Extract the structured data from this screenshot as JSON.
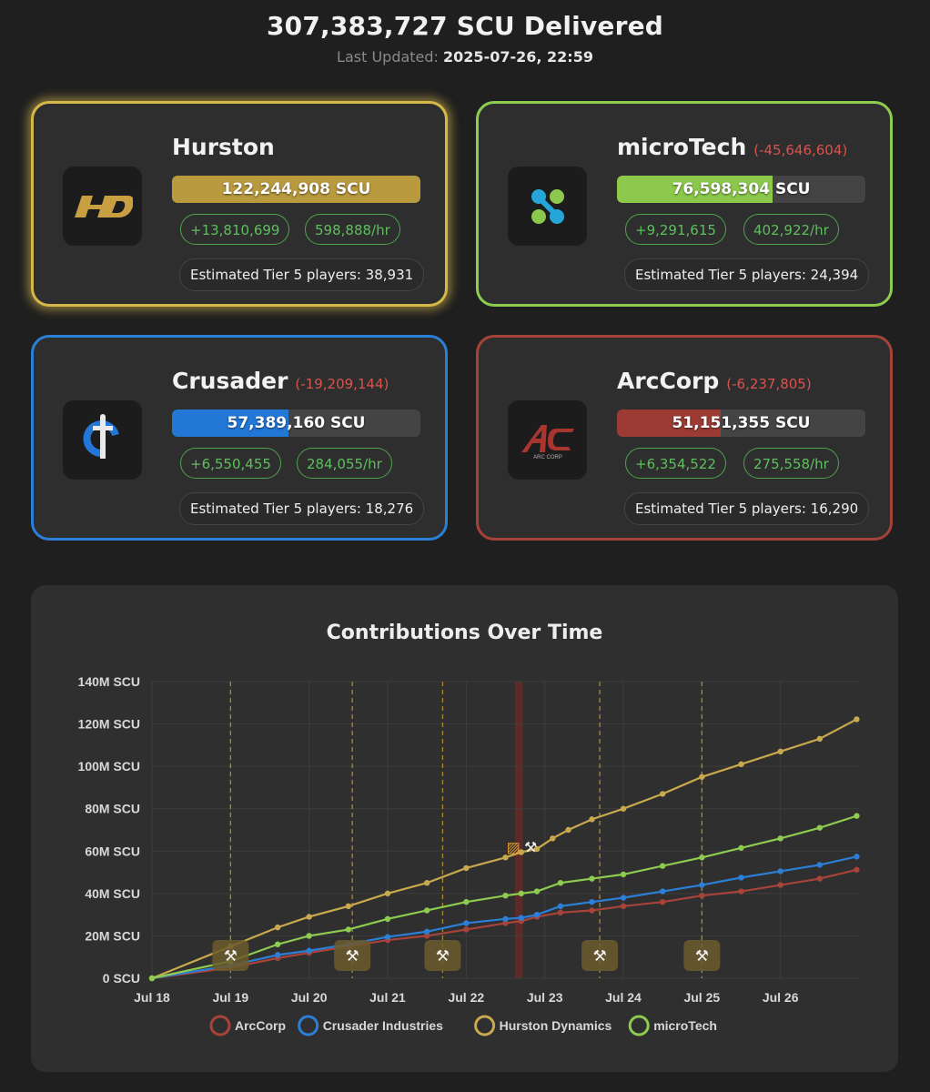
{
  "header": {
    "title": "307,383,727 SCU Delivered",
    "updated_label": "Last Updated:",
    "updated_value": "2025-07-26, 22:59"
  },
  "factions": [
    {
      "name": "Hurston",
      "delta": "",
      "scu": "122,244,908 SCU",
      "fill": 1.0,
      "gain": "+13,810,699",
      "rate": "598,888/hr",
      "tier": "Estimated Tier 5 players: 38,931",
      "color": "#b99a3e",
      "icon": "hurston-dynamics-logo"
    },
    {
      "name": "microTech",
      "delta": "(-45,646,604)",
      "scu": "76,598,304 SCU",
      "fill": 0.626,
      "gain": "+9,291,615",
      "rate": "402,922/hr",
      "tier": "Estimated Tier 5 players: 24,394",
      "color": "#8cc84b",
      "icon": "microtech-logo"
    },
    {
      "name": "Crusader",
      "delta": "(-19,209,144)",
      "scu": "57,389,160 SCU",
      "fill": 0.469,
      "gain": "+6,550,455",
      "rate": "284,055/hr",
      "tier": "Estimated Tier 5 players: 18,276",
      "color": "#2377d6",
      "icon": "crusader-logo"
    },
    {
      "name": "ArcCorp",
      "delta": "(-6,237,805)",
      "scu": "51,151,355 SCU",
      "fill": 0.418,
      "gain": "+6,354,522",
      "rate": "275,558/hr",
      "tier": "Estimated Tier 5 players: 16,290",
      "color": "#9b3b34",
      "icon": "arccorp-logo"
    }
  ],
  "chart_data": {
    "type": "line",
    "title": "Contributions Over Time",
    "xlabel": "",
    "ylabel": "",
    "x_ticks": [
      "Jul 18",
      "Jul 19",
      "Jul 20",
      "Jul 21",
      "Jul 22",
      "Jul 23",
      "Jul 24",
      "Jul 25",
      "Jul 26"
    ],
    "y_ticks": [
      "0 SCU",
      "20M SCU",
      "40M SCU",
      "60M SCU",
      "80M SCU",
      "100M SCU",
      "120M SCU",
      "140M SCU"
    ],
    "ylim": [
      0,
      140
    ],
    "xlim": [
      0,
      9
    ],
    "x_unit": "days since Jul 18",
    "grid": true,
    "legend_position": "bottom",
    "series": [
      {
        "name": "ArcCorp",
        "color": "#a8433a",
        "points": [
          [
            0,
            0
          ],
          [
            1,
            5
          ],
          [
            1.6,
            9.5
          ],
          [
            2,
            12
          ],
          [
            2.5,
            15
          ],
          [
            3,
            18
          ],
          [
            3.5,
            20
          ],
          [
            4,
            23
          ],
          [
            4.5,
            26
          ],
          [
            4.7,
            27
          ],
          [
            4.9,
            29
          ],
          [
            5.2,
            31
          ],
          [
            5.6,
            32
          ],
          [
            6,
            34
          ],
          [
            6.5,
            36
          ],
          [
            7,
            39
          ],
          [
            7.5,
            41
          ],
          [
            8,
            44
          ],
          [
            8.5,
            47
          ],
          [
            8.97,
            51.2
          ]
        ]
      },
      {
        "name": "Crusader Industries",
        "color": "#2b7fd7",
        "points": [
          [
            0,
            0
          ],
          [
            1,
            6
          ],
          [
            1.6,
            11
          ],
          [
            2,
            13
          ],
          [
            2.5,
            16
          ],
          [
            3,
            19.5
          ],
          [
            3.5,
            22
          ],
          [
            4,
            26
          ],
          [
            4.5,
            28
          ],
          [
            4.7,
            28.5
          ],
          [
            4.9,
            30
          ],
          [
            5.2,
            34
          ],
          [
            5.6,
            36
          ],
          [
            6,
            38
          ],
          [
            6.5,
            41
          ],
          [
            7,
            44
          ],
          [
            7.5,
            47.5
          ],
          [
            8,
            50.5
          ],
          [
            8.5,
            53.5
          ],
          [
            8.97,
            57.4
          ]
        ]
      },
      {
        "name": "Hurston Dynamics",
        "color": "#c9a94d",
        "points": [
          [
            0,
            0
          ],
          [
            1,
            15
          ],
          [
            1.6,
            24
          ],
          [
            2,
            29
          ],
          [
            2.5,
            34
          ],
          [
            3,
            40
          ],
          [
            3.5,
            45
          ],
          [
            4,
            52
          ],
          [
            4.5,
            57
          ],
          [
            4.7,
            59.5
          ],
          [
            4.9,
            61
          ],
          [
            5.1,
            66
          ],
          [
            5.3,
            70
          ],
          [
            5.6,
            75
          ],
          [
            6,
            80
          ],
          [
            6.5,
            87
          ],
          [
            7,
            95
          ],
          [
            7.5,
            101
          ],
          [
            8,
            107
          ],
          [
            8.5,
            113
          ],
          [
            8.97,
            122.2
          ]
        ]
      },
      {
        "name": "microTech",
        "color": "#8dcc4f",
        "points": [
          [
            0,
            0
          ],
          [
            1,
            8
          ],
          [
            1.6,
            16
          ],
          [
            2,
            20
          ],
          [
            2.5,
            23
          ],
          [
            3,
            28
          ],
          [
            3.5,
            32
          ],
          [
            4,
            36
          ],
          [
            4.5,
            39
          ],
          [
            4.7,
            40
          ],
          [
            4.9,
            41
          ],
          [
            5.2,
            45
          ],
          [
            5.6,
            47
          ],
          [
            6,
            49
          ],
          [
            6.5,
            53
          ],
          [
            7,
            57
          ],
          [
            7.5,
            61.5
          ],
          [
            8,
            66
          ],
          [
            8.5,
            71
          ],
          [
            8.97,
            76.6
          ]
        ]
      }
    ],
    "markers": [
      {
        "x": 1.0,
        "icon": "tools-icon"
      },
      {
        "x": 2.55,
        "icon": "tools-icon"
      },
      {
        "x": 3.7,
        "icon": "tools-icon"
      },
      {
        "x": 5.7,
        "icon": "tools-icon"
      },
      {
        "x": 7.0,
        "icon": "tools-icon"
      }
    ],
    "event_markers": [
      {
        "x": 4.6,
        "icon": "construction-barrier-icon"
      },
      {
        "x": 4.82,
        "icon": "tools-icon"
      }
    ],
    "highlight_band": {
      "x0": 4.62,
      "x1": 4.72,
      "color": "#6b2b27"
    }
  }
}
